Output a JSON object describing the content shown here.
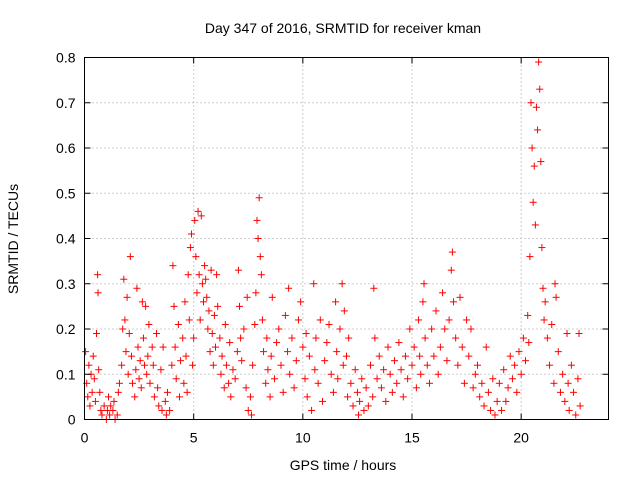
{
  "chart_data": {
    "type": "scatter",
    "title": "Day 347 of 2016, SRMTID for receiver kman",
    "xlabel": "GPS time / hours",
    "ylabel": "SRMTID / TECUs",
    "xlim": [
      0,
      24
    ],
    "ylim": [
      0,
      0.8
    ],
    "x_ticks": [
      0,
      5,
      10,
      15,
      20
    ],
    "y_ticks": [
      0,
      0.1,
      0.2,
      0.3,
      0.4,
      0.5,
      0.6,
      0.7,
      0.8
    ],
    "x_tick_labels": [
      "0",
      "5",
      "10",
      "15",
      "20"
    ],
    "y_tick_labels": [
      "0",
      "0.1",
      "0.2",
      "0.3",
      "0.4",
      "0.5",
      "0.6",
      "0.7",
      "0.8"
    ],
    "grid": true,
    "marker": "+",
    "series_color": "#ff0000",
    "series": [
      {
        "name": "SRMTID",
        "points": [
          [
            0.05,
            0.15
          ],
          [
            0.1,
            0.08
          ],
          [
            0.15,
            0.05
          ],
          [
            0.2,
            0.12
          ],
          [
            0.25,
            0.03
          ],
          [
            0.3,
            0.1
          ],
          [
            0.35,
            0.06
          ],
          [
            0.4,
            0.14
          ],
          [
            0.45,
            0.09
          ],
          [
            0.5,
            0.04
          ],
          [
            0.55,
            0.19
          ],
          [
            0.6,
            0.32
          ],
          [
            0.62,
            0.28
          ],
          [
            0.65,
            0.11
          ],
          [
            0.7,
            0.06
          ],
          [
            0.75,
            0.02
          ],
          [
            0.8,
            0.01
          ],
          [
            0.9,
            0.03
          ],
          [
            1.0,
            0.0
          ],
          [
            1.05,
            0.02
          ],
          [
            1.1,
            0.05
          ],
          [
            1.15,
            0.01
          ],
          [
            1.2,
            0.03
          ],
          [
            1.3,
            0.02
          ],
          [
            1.35,
            0.04
          ],
          [
            1.4,
            0.0
          ],
          [
            1.5,
            0.01
          ],
          [
            1.55,
            0.06
          ],
          [
            1.6,
            0.08
          ],
          [
            1.7,
            0.12
          ],
          [
            1.75,
            0.2
          ],
          [
            1.8,
            0.31
          ],
          [
            1.85,
            0.22
          ],
          [
            1.9,
            0.15
          ],
          [
            1.95,
            0.27
          ],
          [
            2.0,
            0.1
          ],
          [
            2.05,
            0.19
          ],
          [
            2.1,
            0.36
          ],
          [
            2.15,
            0.14
          ],
          [
            2.2,
            0.08
          ],
          [
            2.3,
            0.05
          ],
          [
            2.35,
            0.11
          ],
          [
            2.4,
            0.29
          ],
          [
            2.45,
            0.16
          ],
          [
            2.5,
            0.09
          ],
          [
            2.55,
            0.13
          ],
          [
            2.6,
            0.07
          ],
          [
            2.65,
            0.26
          ],
          [
            2.7,
            0.18
          ],
          [
            2.75,
            0.12
          ],
          [
            2.8,
            0.25
          ],
          [
            2.85,
            0.1
          ],
          [
            2.9,
            0.14
          ],
          [
            2.95,
            0.21
          ],
          [
            3.0,
            0.08
          ],
          [
            3.1,
            0.16
          ],
          [
            3.15,
            0.12
          ],
          [
            3.2,
            0.05
          ],
          [
            3.3,
            0.19
          ],
          [
            3.35,
            0.07
          ],
          [
            3.4,
            0.03
          ],
          [
            3.5,
            0.11
          ],
          [
            3.55,
            0.02
          ],
          [
            3.6,
            0.16
          ],
          [
            3.7,
            0.04
          ],
          [
            3.75,
            0.01
          ],
          [
            3.8,
            0.06
          ],
          [
            3.9,
            0.02
          ],
          [
            4.0,
            0.12
          ],
          [
            4.05,
            0.34
          ],
          [
            4.1,
            0.25
          ],
          [
            4.15,
            0.16
          ],
          [
            4.2,
            0.09
          ],
          [
            4.3,
            0.21
          ],
          [
            4.35,
            0.05
          ],
          [
            4.4,
            0.13
          ],
          [
            4.5,
            0.18
          ],
          [
            4.55,
            0.08
          ],
          [
            4.6,
            0.26
          ],
          [
            4.65,
            0.14
          ],
          [
            4.7,
            0.06
          ],
          [
            4.75,
            0.32
          ],
          [
            4.8,
            0.22
          ],
          [
            4.85,
            0.38
          ],
          [
            4.9,
            0.41
          ],
          [
            4.95,
            0.12
          ],
          [
            5.0,
            0.18
          ],
          [
            5.05,
            0.44
          ],
          [
            5.1,
            0.36
          ],
          [
            5.15,
            0.28
          ],
          [
            5.2,
            0.46
          ],
          [
            5.25,
            0.32
          ],
          [
            5.3,
            0.22
          ],
          [
            5.35,
            0.45
          ],
          [
            5.4,
            0.3
          ],
          [
            5.45,
            0.26
          ],
          [
            5.5,
            0.34
          ],
          [
            5.55,
            0.31
          ],
          [
            5.6,
            0.27
          ],
          [
            5.65,
            0.2
          ],
          [
            5.7,
            0.24
          ],
          [
            5.75,
            0.15
          ],
          [
            5.8,
            0.33
          ],
          [
            5.85,
            0.19
          ],
          [
            5.9,
            0.12
          ],
          [
            5.95,
            0.23
          ],
          [
            6.0,
            0.16
          ],
          [
            6.05,
            0.32
          ],
          [
            6.1,
            0.25
          ],
          [
            6.2,
            0.18
          ],
          [
            6.25,
            0.1
          ],
          [
            6.3,
            0.14
          ],
          [
            6.4,
            0.07
          ],
          [
            6.45,
            0.21
          ],
          [
            6.5,
            0.12
          ],
          [
            6.6,
            0.08
          ],
          [
            6.65,
            0.17
          ],
          [
            6.7,
            0.05
          ],
          [
            6.8,
            0.11
          ],
          [
            6.9,
            0.09
          ],
          [
            7.0,
            0.15
          ],
          [
            7.05,
            0.33
          ],
          [
            7.1,
            0.25
          ],
          [
            7.15,
            0.18
          ],
          [
            7.2,
            0.13
          ],
          [
            7.3,
            0.2
          ],
          [
            7.4,
            0.07
          ],
          [
            7.45,
            0.27
          ],
          [
            7.5,
            0.02
          ],
          [
            7.6,
            0.05
          ],
          [
            7.65,
            0.01
          ],
          [
            7.7,
            0.12
          ],
          [
            7.8,
            0.21
          ],
          [
            7.85,
            0.28
          ],
          [
            7.9,
            0.44
          ],
          [
            7.95,
            0.4
          ],
          [
            8.0,
            0.49
          ],
          [
            8.05,
            0.36
          ],
          [
            8.1,
            0.32
          ],
          [
            8.15,
            0.22
          ],
          [
            8.2,
            0.15
          ],
          [
            8.3,
            0.08
          ],
          [
            8.35,
            0.18
          ],
          [
            8.4,
            0.11
          ],
          [
            8.5,
            0.05
          ],
          [
            8.55,
            0.14
          ],
          [
            8.6,
            0.27
          ],
          [
            8.7,
            0.09
          ],
          [
            8.8,
            0.17
          ],
          [
            8.9,
            0.2
          ],
          [
            9.0,
            0.12
          ],
          [
            9.1,
            0.06
          ],
          [
            9.2,
            0.23
          ],
          [
            9.3,
            0.15
          ],
          [
            9.35,
            0.29
          ],
          [
            9.4,
            0.1
          ],
          [
            9.5,
            0.18
          ],
          [
            9.6,
            0.07
          ],
          [
            9.7,
            0.13
          ],
          [
            9.8,
            0.22
          ],
          [
            9.9,
            0.26
          ],
          [
            10.0,
            0.16
          ],
          [
            10.1,
            0.09
          ],
          [
            10.15,
            0.19
          ],
          [
            10.2,
            0.05
          ],
          [
            10.3,
            0.14
          ],
          [
            10.4,
            0.02
          ],
          [
            10.5,
            0.3
          ],
          [
            10.55,
            0.11
          ],
          [
            10.6,
            0.18
          ],
          [
            10.7,
            0.08
          ],
          [
            10.8,
            0.22
          ],
          [
            10.9,
            0.04
          ],
          [
            11.0,
            0.13
          ],
          [
            11.1,
            0.17
          ],
          [
            11.2,
            0.21
          ],
          [
            11.3,
            0.1
          ],
          [
            11.4,
            0.06
          ],
          [
            11.5,
            0.26
          ],
          [
            11.55,
            0.15
          ],
          [
            11.6,
            0.09
          ],
          [
            11.7,
            0.2
          ],
          [
            11.8,
            0.3
          ],
          [
            11.85,
            0.12
          ],
          [
            11.9,
            0.24
          ],
          [
            12.0,
            0.14
          ],
          [
            12.05,
            0.05
          ],
          [
            12.1,
            0.18
          ],
          [
            12.2,
            0.08
          ],
          [
            12.3,
            0.03
          ],
          [
            12.4,
            0.11
          ],
          [
            12.5,
            0.06
          ],
          [
            12.55,
            0.01
          ],
          [
            12.6,
            0.04
          ],
          [
            12.7,
            0.09
          ],
          [
            12.8,
            0.02
          ],
          [
            12.9,
            0.07
          ],
          [
            13.0,
            0.03
          ],
          [
            13.1,
            0.12
          ],
          [
            13.2,
            0.05
          ],
          [
            13.25,
            0.29
          ],
          [
            13.3,
            0.18
          ],
          [
            13.4,
            0.09
          ],
          [
            13.5,
            0.14
          ],
          [
            13.6,
            0.07
          ],
          [
            13.7,
            0.11
          ],
          [
            13.8,
            0.04
          ],
          [
            13.9,
            0.16
          ],
          [
            14.0,
            0.1
          ],
          [
            14.1,
            0.06
          ],
          [
            14.2,
            0.13
          ],
          [
            14.3,
            0.08
          ],
          [
            14.4,
            0.17
          ],
          [
            14.5,
            0.11
          ],
          [
            14.6,
            0.05
          ],
          [
            14.7,
            0.14
          ],
          [
            14.8,
            0.09
          ],
          [
            14.9,
            0.2
          ],
          [
            15.0,
            0.12
          ],
          [
            15.1,
            0.16
          ],
          [
            15.2,
            0.07
          ],
          [
            15.3,
            0.22
          ],
          [
            15.35,
            0.14
          ],
          [
            15.4,
            0.1
          ],
          [
            15.5,
            0.26
          ],
          [
            15.55,
            0.3
          ],
          [
            15.6,
            0.18
          ],
          [
            15.7,
            0.12
          ],
          [
            15.8,
            0.08
          ],
          [
            15.9,
            0.2
          ],
          [
            16.0,
            0.14
          ],
          [
            16.1,
            0.24
          ],
          [
            16.2,
            0.1
          ],
          [
            16.3,
            0.16
          ],
          [
            16.4,
            0.28
          ],
          [
            16.5,
            0.2
          ],
          [
            16.6,
            0.13
          ],
          [
            16.7,
            0.22
          ],
          [
            16.8,
            0.33
          ],
          [
            16.85,
            0.37
          ],
          [
            16.9,
            0.26
          ],
          [
            17.0,
            0.18
          ],
          [
            17.1,
            0.12
          ],
          [
            17.2,
            0.27
          ],
          [
            17.3,
            0.16
          ],
          [
            17.4,
            0.08
          ],
          [
            17.5,
            0.22
          ],
          [
            17.6,
            0.14
          ],
          [
            17.7,
            0.2
          ],
          [
            17.8,
            0.07
          ],
          [
            17.9,
            0.1
          ],
          [
            18.0,
            0.12
          ],
          [
            18.1,
            0.05
          ],
          [
            18.2,
            0.08
          ],
          [
            18.3,
            0.03
          ],
          [
            18.4,
            0.16
          ],
          [
            18.5,
            0.06
          ],
          [
            18.6,
            0.02
          ],
          [
            18.7,
            0.09
          ],
          [
            18.8,
            0.01
          ],
          [
            18.9,
            0.04
          ],
          [
            19.0,
            0.08
          ],
          [
            19.1,
            0.02
          ],
          [
            19.2,
            0.11
          ],
          [
            19.3,
            0.04
          ],
          [
            19.4,
            0.07
          ],
          [
            19.5,
            0.14
          ],
          [
            19.6,
            0.09
          ],
          [
            19.7,
            0.12
          ],
          [
            19.8,
            0.06
          ],
          [
            19.9,
            0.15
          ],
          [
            20.0,
            0.1
          ],
          [
            20.1,
            0.18
          ],
          [
            20.2,
            0.13
          ],
          [
            20.3,
            0.23
          ],
          [
            20.35,
            0.17
          ],
          [
            20.4,
            0.36
          ],
          [
            20.45,
            0.7
          ],
          [
            20.5,
            0.6
          ],
          [
            20.55,
            0.48
          ],
          [
            20.6,
            0.56
          ],
          [
            20.65,
            0.43
          ],
          [
            20.7,
            0.69
          ],
          [
            20.75,
            0.64
          ],
          [
            20.8,
            0.79
          ],
          [
            20.85,
            0.73
          ],
          [
            20.9,
            0.57
          ],
          [
            20.95,
            0.38
          ],
          [
            21.0,
            0.29
          ],
          [
            21.05,
            0.22
          ],
          [
            21.1,
            0.26
          ],
          [
            21.2,
            0.18
          ],
          [
            21.3,
            0.12
          ],
          [
            21.4,
            0.21
          ],
          [
            21.5,
            0.08
          ],
          [
            21.55,
            0.3
          ],
          [
            21.6,
            0.27
          ],
          [
            21.7,
            0.15
          ],
          [
            21.8,
            0.06
          ],
          [
            21.9,
            0.1
          ],
          [
            22.0,
            0.04
          ],
          [
            22.1,
            0.19
          ],
          [
            22.15,
            0.08
          ],
          [
            22.2,
            0.02
          ],
          [
            22.3,
            0.12
          ],
          [
            22.4,
            0.06
          ],
          [
            22.5,
            0.01
          ],
          [
            22.6,
            0.09
          ],
          [
            22.65,
            0.19
          ],
          [
            22.7,
            0.03
          ]
        ]
      }
    ]
  }
}
